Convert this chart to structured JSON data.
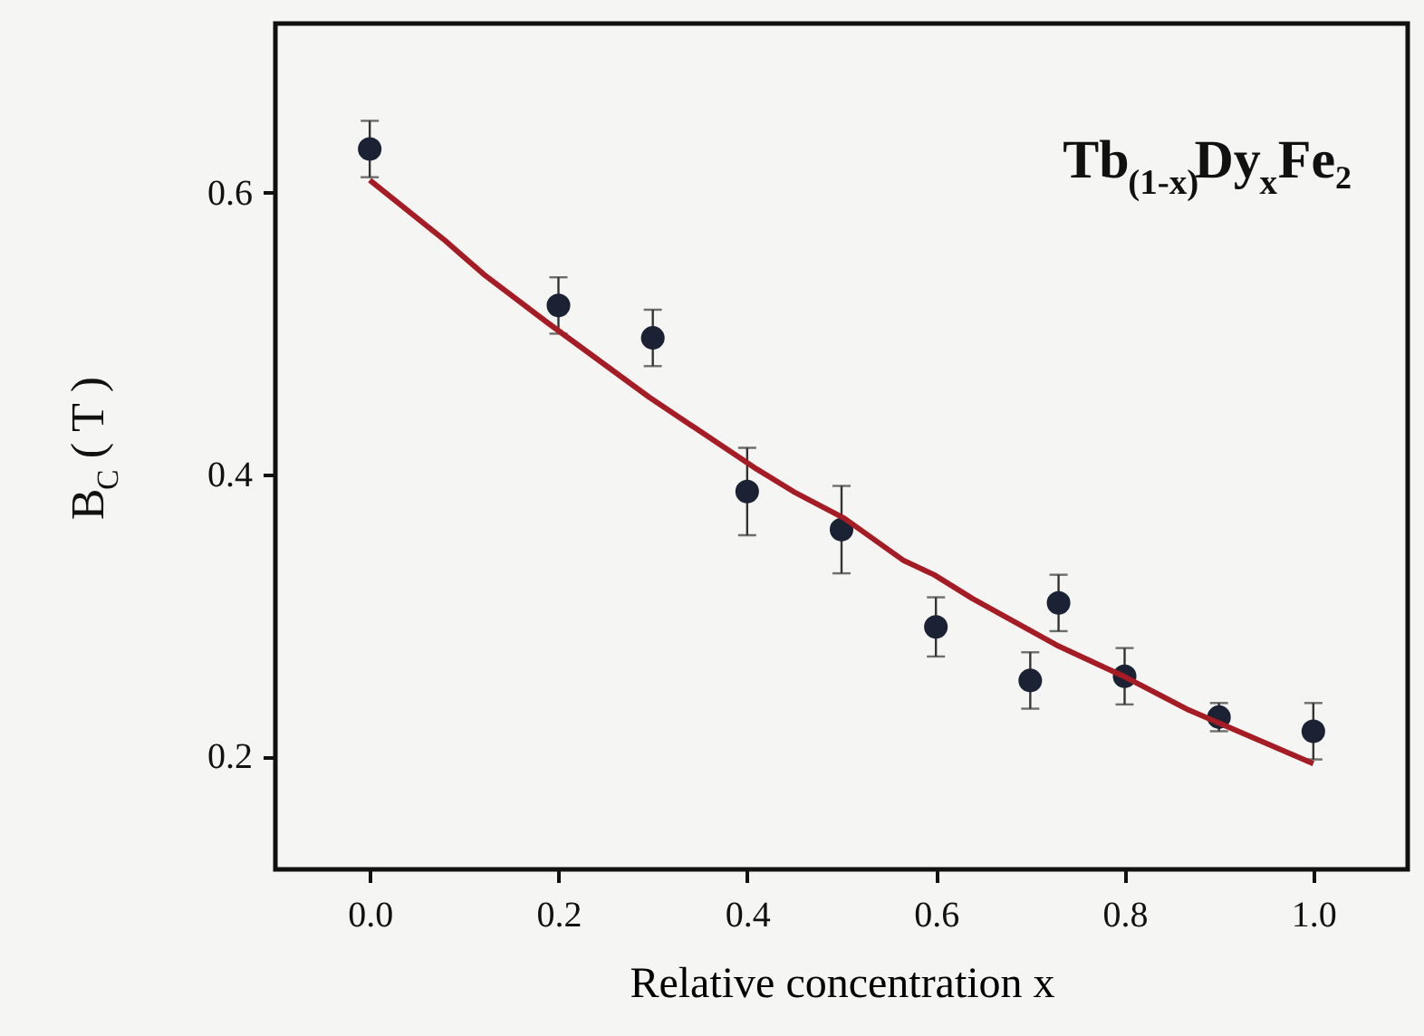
{
  "chart_data": {
    "type": "scatter",
    "xlabel": "Relative concentration x",
    "ylabel": "B$_{C}$ ( T )",
    "annotations": [
      "Tb$_{(1-x)}$Dy$_{x}$Fe₂"
    ],
    "xlim": [
      -0.1,
      1.1
    ],
    "xticks": [
      {
        "value": 0,
        "label": "0.0"
      },
      0.2,
      0.4,
      0.6,
      0.8,
      {
        "value": 1,
        "label": "1.0"
      }
    ],
    "ylim": [
      0.12,
      0.72
    ],
    "yticks": [
      0.2,
      0.4,
      0.6
    ],
    "grid": false,
    "series": [
      {
        "marker": "circle",
        "color": "#1a2233",
        "x": [
          0.0,
          0.2,
          0.3,
          0.4,
          0.5,
          0.6,
          0.7,
          0.73,
          0.8,
          0.9,
          1.0
        ],
        "values": [
          0.631,
          0.52,
          0.497,
          0.388,
          0.361,
          0.292,
          0.254,
          0.309,
          0.257,
          0.228,
          0.218
        ],
        "errors": [
          0.02,
          0.02,
          0.02,
          0.031,
          0.031,
          0.021,
          0.02,
          0.02,
          0.02,
          0.01,
          0.02
        ]
      },
      {
        "type": "line",
        "color": "#a51c24",
        "line_style": "solid",
        "x": [
          0.0,
          0.08,
          0.121,
          0.188,
          0.296,
          0.41,
          0.449,
          0.503,
          0.566,
          0.598,
          0.639,
          0.728,
          0.802,
          0.868,
          1.0
        ],
        "values": [
          0.609,
          0.566,
          0.542,
          0.508,
          0.455,
          0.404,
          0.388,
          0.369,
          0.339,
          0.329,
          0.312,
          0.279,
          0.256,
          0.233,
          0.195
        ]
      }
    ]
  }
}
